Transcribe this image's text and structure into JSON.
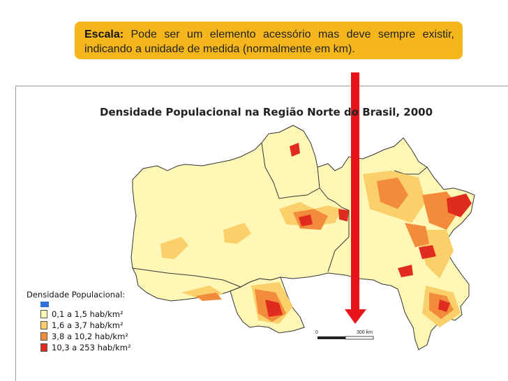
{
  "callout": {
    "label": "Escala:",
    "text": " Pode ser um elemento acessório mas deve sempre existir, indicando a unidade de medida (normalmente em km)."
  },
  "map": {
    "title": "Densidade Populacional na Região Norte do Brasil, 2000"
  },
  "legend": {
    "title": "Densidade Populacional:",
    "items": [
      {
        "label": "0,1 a 1,5 hab/km²",
        "color": "#fff7b6"
      },
      {
        "label": "1,6 a 3,7 hab/km²",
        "color": "#fbcf6a"
      },
      {
        "label": "3,8 a 10,2 hab/km²",
        "color": "#f28b3a"
      },
      {
        "label": "10,3 a 253 hab/km²",
        "color": "#e02b1f"
      }
    ],
    "water_color": "#2f6fdc"
  },
  "scale": {
    "start": "0",
    "end": "300",
    "unit": "km"
  },
  "colors": {
    "callout_bg": "#f5b61c",
    "arrow": "#e8141a",
    "low": "#fff7b6",
    "mid_low": "#fbcf6a",
    "mid_high": "#f28b3a",
    "high": "#e02b1f"
  }
}
